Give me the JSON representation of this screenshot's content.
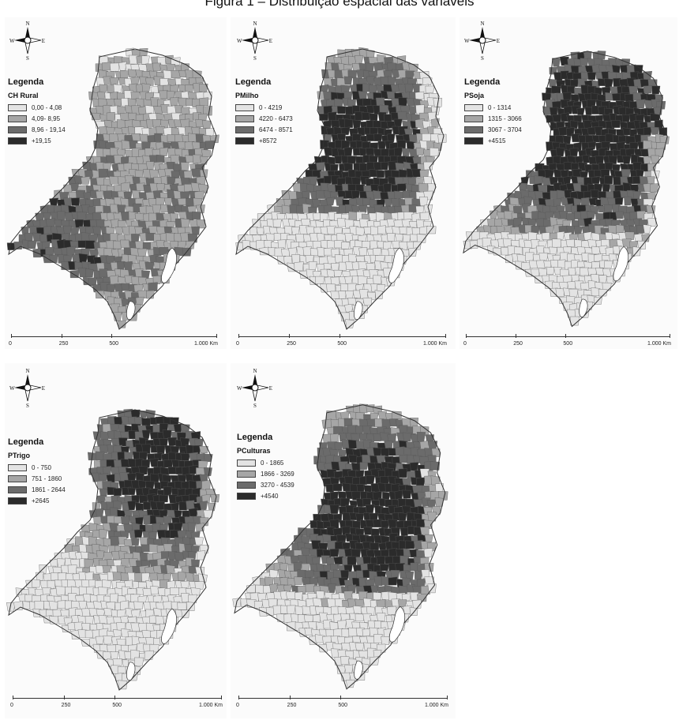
{
  "figure": {
    "title": "Figura 1 – Distribuição espacial das variáveis"
  },
  "compass": {
    "n": "N",
    "s": "S",
    "e": "E",
    "w": "W"
  },
  "colors": {
    "c1": "#e3e3e3",
    "c2": "#a6a6a6",
    "c3": "#6b6b6b",
    "c4": "#2b2b2b",
    "border": "#555555"
  },
  "scale": {
    "labels": [
      "0",
      "250",
      "500",
      "1.000 Km"
    ]
  },
  "maps": [
    {
      "legend_title": "Legenda",
      "variable": "CH Rural",
      "classes": [
        "0,00 - 4,08",
        "4,09- 8,95",
        "8,96 - 19,14",
        "+19,15"
      ],
      "dominant": "low"
    },
    {
      "legend_title": "Legenda",
      "variable": "PMilho",
      "classes": [
        "0 - 4219",
        "4220 - 6473",
        "6474 - 8571",
        "+8572"
      ],
      "dominant": "high-north"
    },
    {
      "legend_title": "Legenda",
      "variable": "PSoja",
      "classes": [
        "0 - 1314",
        "1315 - 3066",
        "3067 - 3704",
        "+4515"
      ],
      "dominant": "high-mid"
    },
    {
      "legend_title": "Legenda",
      "variable": "PTrigo",
      "classes": [
        "0 - 750",
        "751 - 1860",
        "1861 - 2644",
        "+2645"
      ],
      "dominant": "high-northeast"
    },
    {
      "legend_title": "Legenda",
      "variable": "PCulturas",
      "classes": [
        "0 - 1865",
        "1866 - 3269",
        "3270 - 4539",
        "+4540"
      ],
      "dominant": "high-center"
    }
  ]
}
